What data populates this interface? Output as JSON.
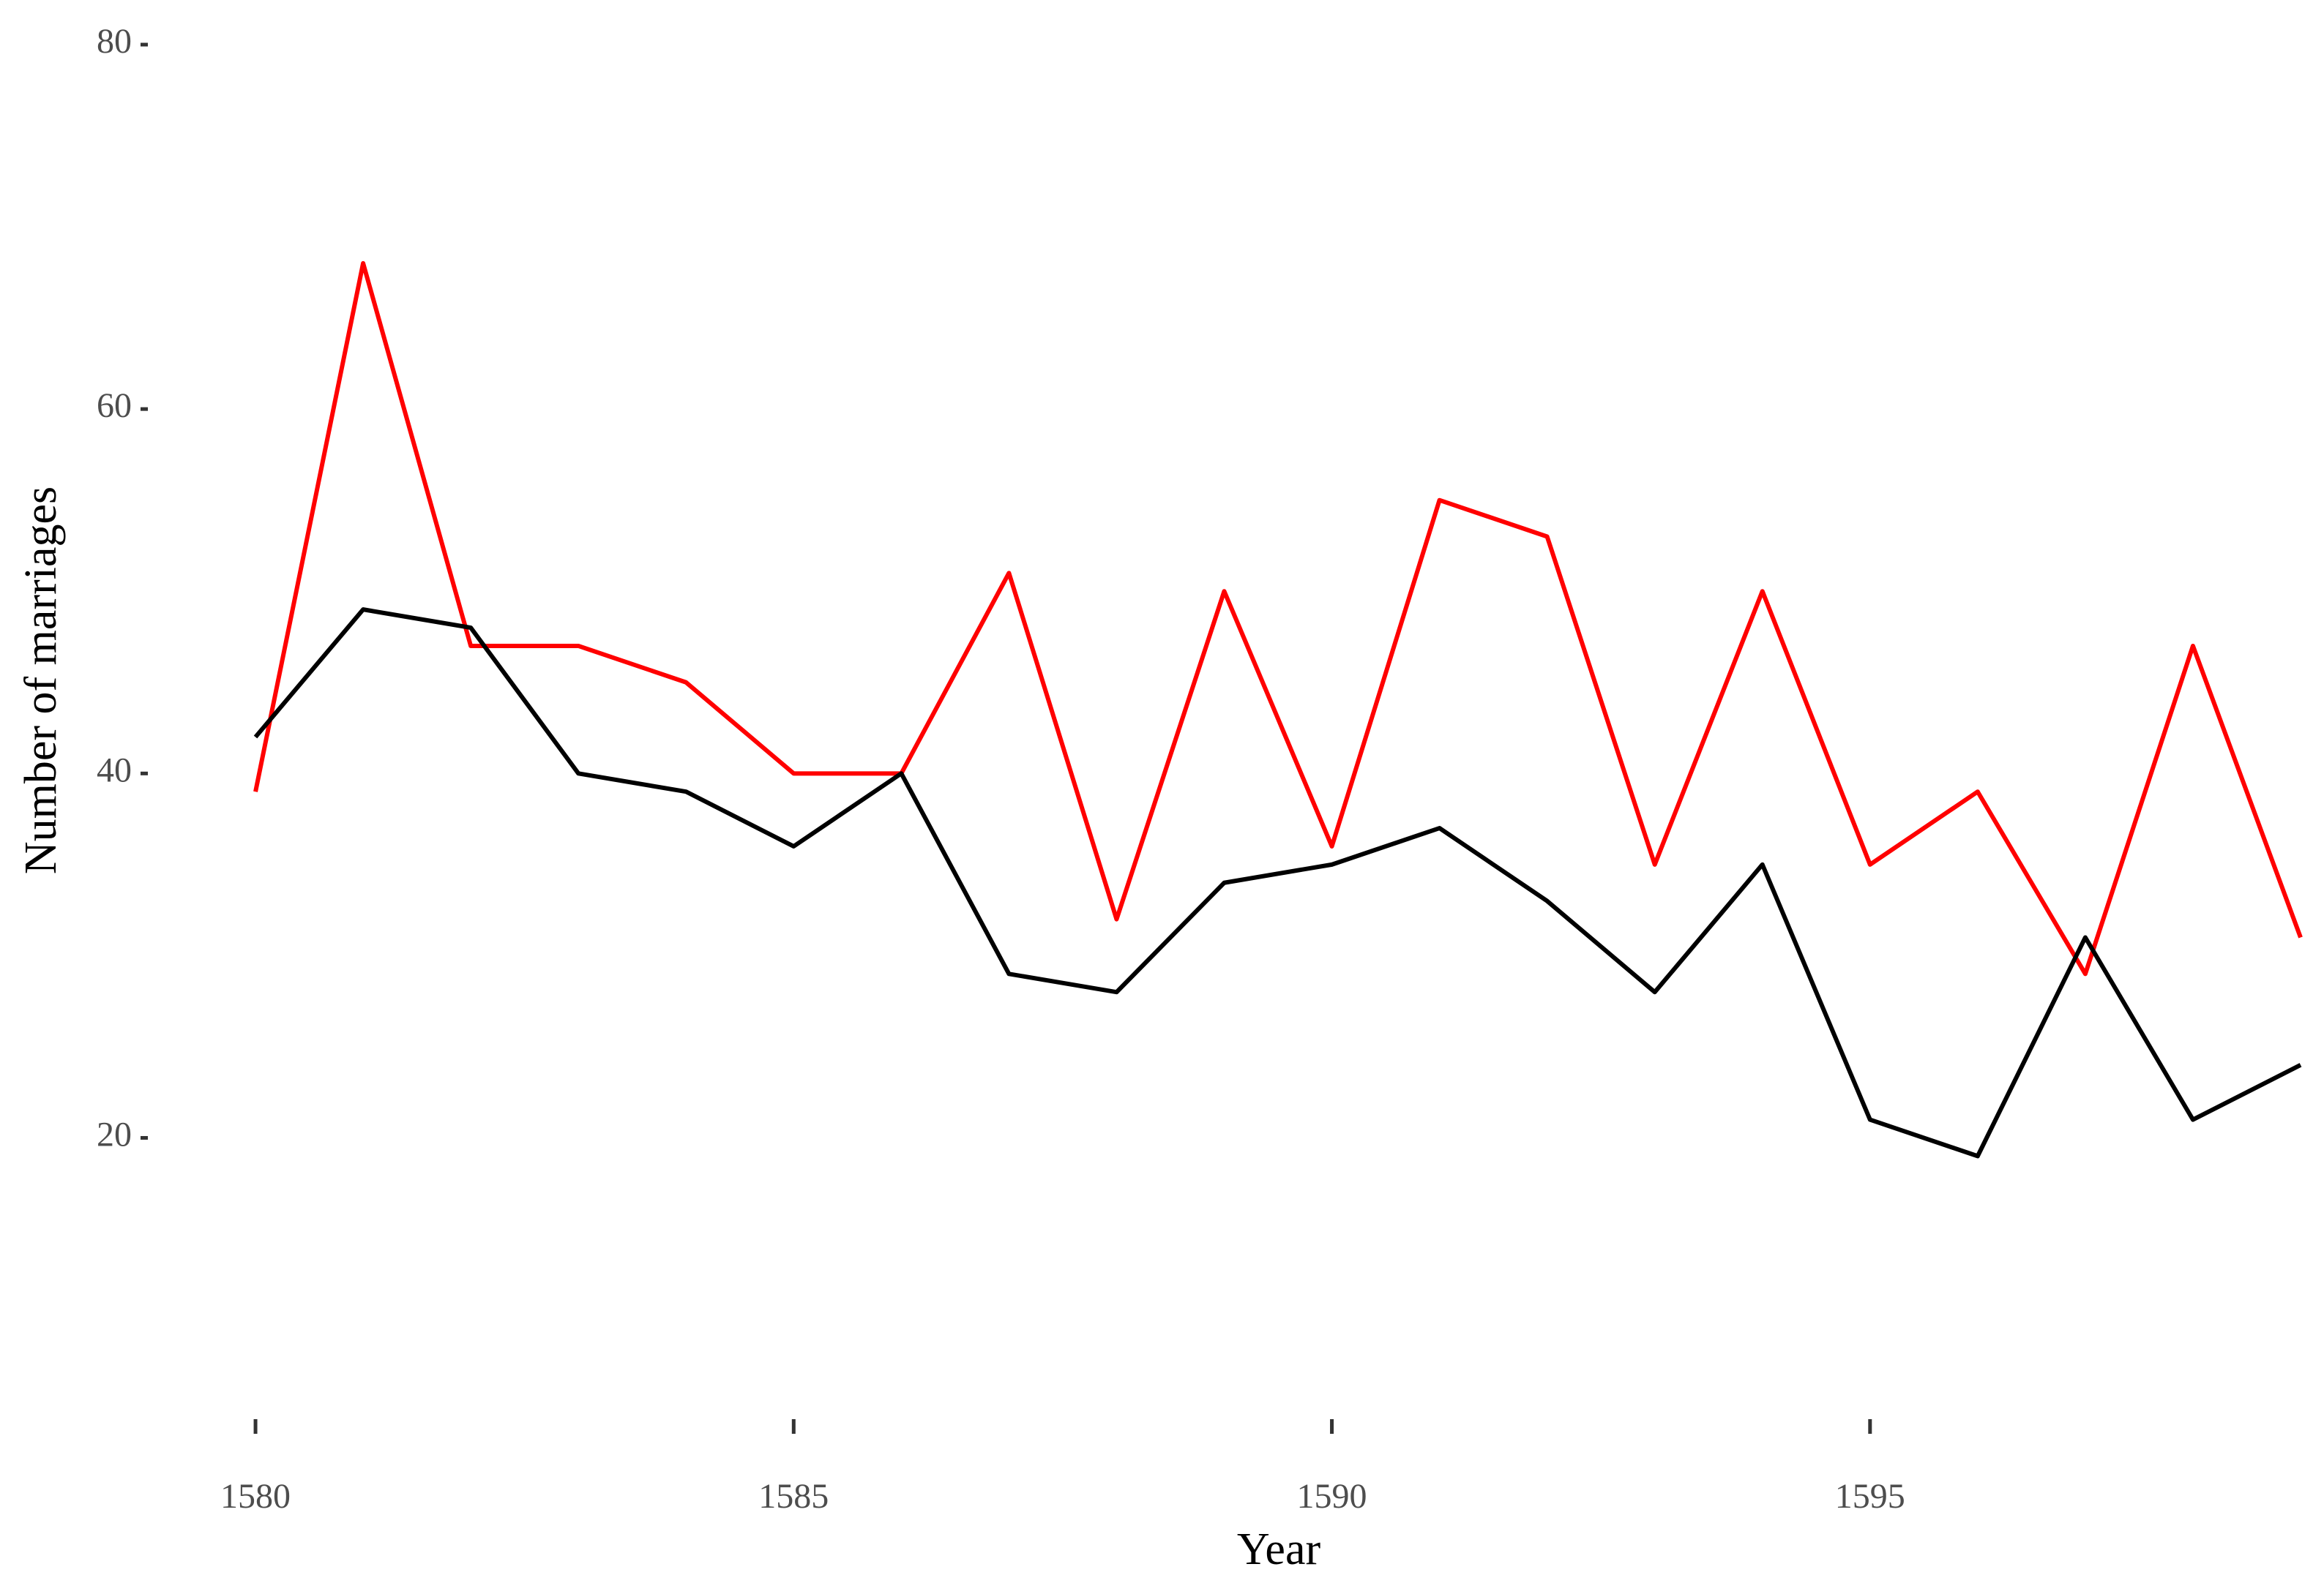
{
  "chart_data": {
    "type": "line",
    "x_label": "Year",
    "y_label": "Number of marriages",
    "x": [
      1580,
      1581,
      1582,
      1583,
      1584,
      1585,
      1586,
      1587,
      1588,
      1589,
      1590,
      1591,
      1592,
      1593,
      1594,
      1595,
      1596,
      1597,
      1598,
      1599
    ],
    "series": [
      {
        "color": "#ff0000",
        "values": [
          39,
          68,
          47,
          47,
          45,
          40,
          40,
          51,
          32,
          50,
          36,
          55,
          53,
          35,
          50,
          35,
          39,
          29,
          47,
          31
        ]
      },
      {
        "color": "#000000",
        "values": [
          42,
          49,
          48,
          40,
          39,
          36,
          40,
          29,
          28,
          34,
          35,
          37,
          33,
          28,
          35,
          21,
          19,
          31,
          21,
          24
        ]
      }
    ],
    "xlim": [
      1579,
      1599
    ],
    "xticks": [
      1580,
      1585,
      1590,
      1595
    ],
    "ylim": [
      4,
      80
    ],
    "yticks": [
      20,
      40,
      60,
      80
    ],
    "grid": false
  }
}
